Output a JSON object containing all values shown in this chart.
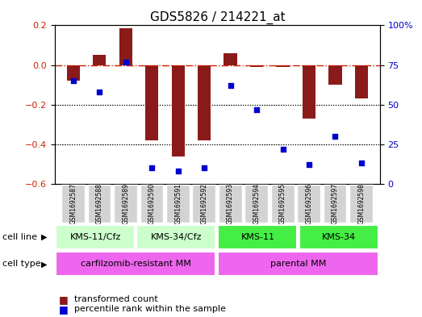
{
  "title": "GDS5826 / 214221_at",
  "samples": [
    "GSM1692587",
    "GSM1692588",
    "GSM1692589",
    "GSM1692590",
    "GSM1692591",
    "GSM1692592",
    "GSM1692593",
    "GSM1692594",
    "GSM1692595",
    "GSM1692596",
    "GSM1692597",
    "GSM1692598"
  ],
  "bar_values": [
    -0.08,
    0.05,
    0.185,
    -0.38,
    -0.46,
    -0.38,
    0.06,
    -0.01,
    -0.01,
    -0.27,
    -0.1,
    -0.17
  ],
  "dot_values_pct": [
    65,
    58,
    77,
    10,
    8,
    10,
    62,
    47,
    22,
    12,
    30,
    13
  ],
  "bar_color": "#8B1A1A",
  "dot_color": "#0000CD",
  "ylim_left": [
    -0.6,
    0.2
  ],
  "ylim_right": [
    0,
    100
  ],
  "yticks_left": [
    -0.6,
    -0.4,
    -0.2,
    0.0,
    0.2
  ],
  "yticks_right": [
    0,
    25,
    50,
    75,
    100
  ],
  "ytick_labels_right": [
    "0",
    "25",
    "50",
    "75",
    "100%"
  ],
  "zero_line_color": "#CC2200",
  "grid_color": "#000000",
  "cell_line_groups": [
    {
      "label": "KMS-11/Cfz",
      "start": 0,
      "end": 3,
      "color_light": "#CCFFCC",
      "color_dark": "#55DD55"
    },
    {
      "label": "KMS-34/Cfz",
      "start": 3,
      "end": 6,
      "color_light": "#CCFFCC",
      "color_dark": "#55DD55"
    },
    {
      "label": "KMS-11",
      "start": 6,
      "end": 9,
      "color_light": "#44EE44",
      "color_dark": "#22CC22"
    },
    {
      "label": "KMS-34",
      "start": 9,
      "end": 12,
      "color_light": "#44EE44",
      "color_dark": "#22CC22"
    }
  ],
  "cell_type_groups": [
    {
      "label": "carfilzomib-resistant MM",
      "start": 0,
      "end": 6
    },
    {
      "label": "parental MM",
      "start": 6,
      "end": 12
    }
  ],
  "cell_type_color": "#EE66EE",
  "legend_bar_label": "transformed count",
  "legend_dot_label": "percentile rank within the sample",
  "background_color": "#FFFFFF",
  "plot_bg_color": "#FFFFFF",
  "tick_label_color_left": "#CC2200",
  "tick_label_color_right": "#0000CD"
}
